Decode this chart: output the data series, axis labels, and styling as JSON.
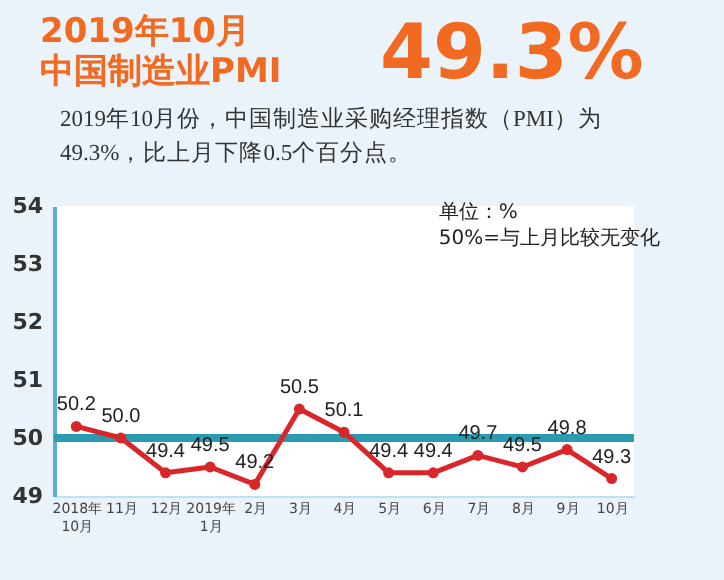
{
  "chart_data": {
    "type": "line",
    "title": "2019年10月中国制造业PMI",
    "subtitle": "2019年10月份，中国制造业采购经理指数（PMI）为49.3%，比上月下降0.5个百分点。",
    "annotations": [
      "49.3%",
      "单位：%",
      "50%=与上月比较无变化"
    ],
    "categories": [
      "2018年\n10月",
      "11月",
      "12月",
      "2019年\n1月",
      "2月",
      "3月",
      "4月",
      "5月",
      "6月",
      "7月",
      "8月",
      "9月",
      "10月"
    ],
    "series": [
      {
        "color": "#d9262b",
        "values": [
          50.2,
          50.0,
          49.4,
          49.5,
          49.2,
          50.5,
          50.1,
          49.4,
          49.4,
          49.7,
          49.5,
          49.8,
          49.3
        ]
      }
    ],
    "ylim": [
      49,
      54
    ],
    "yticks": [
      49,
      50,
      51,
      52,
      53,
      54
    ],
    "ref_lines": [
      {
        "axis": "y",
        "value": 50,
        "color": "#2a9bb0"
      }
    ],
    "value_labels": [
      "50.2",
      "50.0",
      "49.4",
      "49.5",
      "49.2",
      "50.5",
      "50.1",
      "49.4",
      "49.4",
      "49.7",
      "49.5",
      "49.8",
      "49.3"
    ],
    "marker": "circle",
    "grid": false
  }
}
